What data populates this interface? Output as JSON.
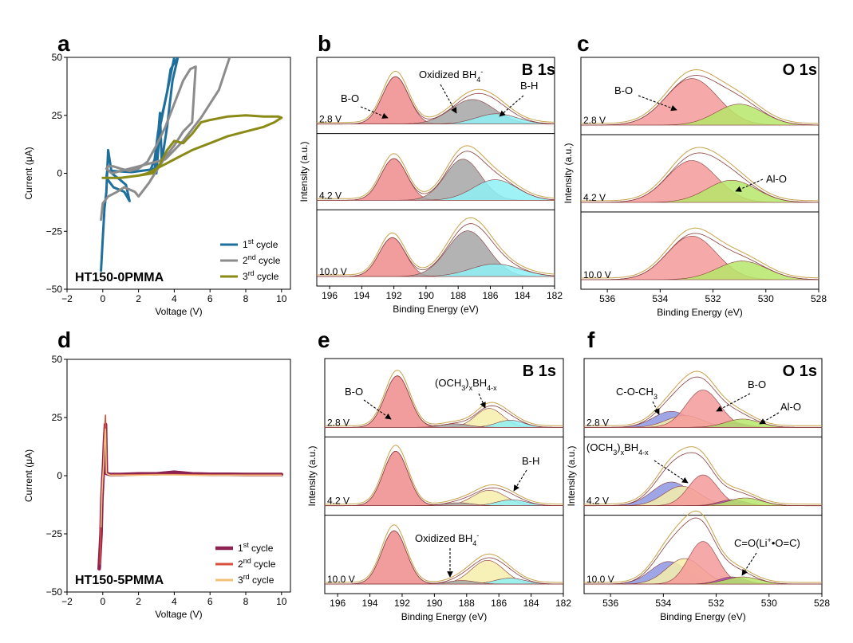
{
  "colors": {
    "c1": "#1f6f9c",
    "c2": "#8c8c8c",
    "c3": "#8a8a16",
    "d1": "#8b2252",
    "d2": "#d94f3a",
    "d3": "#f2c27a",
    "b_o": "#f08c8c",
    "b_h": "#8ef0f4",
    "oxidized": "#a6a6a6",
    "och3_boh": "#f6eeaa",
    "o_bo": "#f49a9a",
    "al_o": "#b6e66a",
    "c_o_ch3": "#8d96e2",
    "c_o_li": "#a64db8",
    "envelope": "#c8a24a",
    "data_line": "#8a3d3d"
  },
  "chart_data": [
    {
      "panel": "a",
      "type": "line",
      "title": "HT150-0PMMA",
      "xlabel": "Voltage (V)",
      "ylabel": "Current (μA)",
      "xlim": [
        -2,
        10.5
      ],
      "ylim": [
        -50,
        50
      ],
      "xticks": [
        "−2",
        "0",
        "2",
        "4",
        "6",
        "8",
        "10"
      ],
      "yticks": [
        "50",
        "25",
        "0",
        "−25",
        "−50"
      ],
      "legend_position": "bottom-right",
      "series": [
        {
          "name": "1st cycle",
          "label_base": "1",
          "label_sup": "st",
          "label_rest": " cycle",
          "color_key": "c1",
          "x": [
            -0.1,
            0.0,
            0.1,
            0.2,
            0.3,
            0.5,
            1.0,
            1.3,
            1.5,
            1.2,
            0.6,
            0.2,
            0.25,
            0.6,
            1.6,
            2.1,
            2.6,
            2.9,
            3.0,
            3.2,
            3.3,
            3.6,
            3.9,
            4.2,
            3.8,
            3.6,
            3.4,
            3.1,
            2.9,
            2.7,
            3.0,
            3.2,
            3.6,
            4.0
          ],
          "y": [
            -42,
            -28,
            -15,
            -8,
            10,
            0,
            -3,
            -5,
            -12,
            -8,
            -6,
            -2,
            1,
            1,
            0.5,
            1,
            1.5,
            2,
            8,
            26,
            5,
            20,
            40,
            50,
            45,
            35,
            28,
            18,
            6,
            2,
            0,
            20,
            35,
            50
          ]
        },
        {
          "name": "2nd cycle",
          "label_base": "2",
          "label_sup": "nd",
          "label_rest": " cycle",
          "color_key": "c2",
          "x": [
            -0.1,
            0.0,
            0.3,
            0.8,
            1.2,
            1.8,
            2.0,
            2.2,
            2.6,
            3.0,
            3.5,
            4.0,
            4.5,
            5.0,
            5.2,
            4.9,
            4.5,
            4.0,
            3.5,
            3.0,
            2.5,
            2.0,
            1.5,
            1.0,
            0.6,
            0.3,
            0.2,
            0.5,
            1.5,
            2.5,
            3.5,
            4.5,
            5.5,
            6.5,
            7.1
          ],
          "y": [
            -20,
            -13,
            -10,
            -8,
            -6,
            -8,
            -10,
            -8,
            -4,
            1,
            7,
            12,
            18,
            22,
            46,
            45,
            40,
            30,
            20,
            12,
            5,
            2,
            1,
            2,
            3,
            3,
            2,
            0,
            2,
            4,
            6,
            14,
            24,
            36,
            50
          ]
        },
        {
          "name": "3rd cycle",
          "label_base": "3",
          "label_sup": "rd",
          "label_rest": " cycle",
          "color_key": "c3",
          "x": [
            0.0,
            1.0,
            2.0,
            2.8,
            3.2,
            3.6,
            4.0,
            4.5,
            5.0,
            5.5,
            6.0,
            7.0,
            8.0,
            9.0,
            9.8,
            10.0,
            9.6,
            9.0,
            8.0,
            7.0,
            6.0,
            5.0,
            4.5,
            4.0,
            3.5,
            3.0,
            2.5,
            2.0,
            1.0,
            0.0
          ],
          "y": [
            -2,
            -2,
            -1,
            0,
            4,
            10,
            14,
            13,
            17,
            22,
            23,
            24.5,
            25,
            24.5,
            24.5,
            24,
            22,
            20,
            18,
            16,
            13,
            10,
            8,
            6,
            4,
            2,
            0,
            -1,
            -2,
            -2
          ]
        }
      ]
    },
    {
      "panel": "b",
      "type": "area",
      "title": "B 1s",
      "xlabel": "Binding Energy (eV)",
      "ylabel": "Intensity (a.u.)",
      "xlim": [
        196.8,
        182
      ],
      "xticks": [
        "196",
        "194",
        "192",
        "190",
        "188",
        "186",
        "184",
        "182"
      ],
      "stacks": [
        {
          "label": "2.8 V",
          "peaks": [
            {
              "component": "B-O",
              "color_key": "b_o",
              "center": 191.9,
              "fwhm": 1.9,
              "height": 0.83
            },
            {
              "component": "Oxidized BH4-",
              "color_key": "oxidized",
              "center": 187.1,
              "fwhm": 3.2,
              "height": 0.43
            },
            {
              "component": "B-H",
              "color_key": "b_h",
              "center": 185.6,
              "fwhm": 3.0,
              "height": 0.18
            }
          ]
        },
        {
          "label": "4.2 V",
          "peaks": [
            {
              "component": "B-O",
              "color_key": "b_o",
              "center": 192.0,
              "fwhm": 1.9,
              "height": 0.73
            },
            {
              "component": "Oxidized BH4-",
              "color_key": "oxidized",
              "center": 187.7,
              "fwhm": 2.6,
              "height": 0.72
            },
            {
              "component": "B-H",
              "color_key": "b_h",
              "center": 185.7,
              "fwhm": 3.2,
              "height": 0.36
            }
          ]
        },
        {
          "label": "10.0 V",
          "peaks": [
            {
              "component": "B-O",
              "color_key": "b_o",
              "center": 192.1,
              "fwhm": 1.9,
              "height": 0.68
            },
            {
              "component": "Oxidized BH4-",
              "color_key": "oxidized",
              "center": 187.4,
              "fwhm": 3.0,
              "height": 0.8
            },
            {
              "component": "B-H",
              "color_key": "b_h",
              "center": 185.7,
              "fwhm": 3.6,
              "height": 0.22
            }
          ]
        }
      ],
      "annotations": {
        "b_o": "B-O",
        "oxidized_base": "Oxidized BH",
        "oxidized_sub": "4",
        "oxidized_sup": "-",
        "b_h": "B-H"
      }
    },
    {
      "panel": "c",
      "type": "area",
      "title": "O 1s",
      "xlabel": "Binding Energy (eV)",
      "ylabel": "Intensity (a.u.)",
      "xlim": [
        537,
        528
      ],
      "xticks": [
        "536",
        "534",
        "532",
        "530",
        "528"
      ],
      "stacks": [
        {
          "label": "2.8 V",
          "peaks": [
            {
              "component": "B-O",
              "color_key": "o_bo",
              "center": 532.8,
              "fwhm": 2.3,
              "height": 0.8
            },
            {
              "component": "Al-O",
              "color_key": "al_o",
              "center": 531.0,
              "fwhm": 2.1,
              "height": 0.36
            }
          ]
        },
        {
          "label": "4.2 V",
          "peaks": [
            {
              "component": "B-O",
              "color_key": "o_bo",
              "center": 532.8,
              "fwhm": 2.2,
              "height": 0.72
            },
            {
              "component": "Al-O",
              "color_key": "al_o",
              "center": 531.3,
              "fwhm": 2.2,
              "height": 0.38
            }
          ]
        },
        {
          "label": "10.0 V",
          "peaks": [
            {
              "component": "B-O",
              "color_key": "o_bo",
              "center": 532.8,
              "fwhm": 2.2,
              "height": 0.75
            },
            {
              "component": "Al-O",
              "color_key": "al_o",
              "center": 530.9,
              "fwhm": 2.2,
              "height": 0.32
            }
          ]
        }
      ],
      "annotations": {
        "b_o": "B-O",
        "al_o": "Al-O"
      }
    },
    {
      "panel": "d",
      "type": "line",
      "title": "HT150-5PMMA",
      "xlabel": "Voltage (V)",
      "ylabel": "Current (μA)",
      "xlim": [
        -2,
        10.5
      ],
      "ylim": [
        -50,
        50
      ],
      "xticks": [
        "−2",
        "0",
        "2",
        "4",
        "6",
        "8",
        "10"
      ],
      "yticks": [
        "50",
        "25",
        "0",
        "−25",
        "−50"
      ],
      "legend_position": "bottom-right",
      "series": [
        {
          "name": "1st cycle",
          "label_base": "1",
          "label_sup": "st",
          "label_rest": " cycle",
          "color_key": "d1",
          "width": 4.5,
          "x": [
            -0.2,
            -0.1,
            -0.05,
            0.0,
            0.05,
            0.1,
            0.15,
            0.2,
            0.4,
            1.0,
            2.0,
            3.0,
            4.0,
            5.0,
            6.0,
            7.0,
            8.0,
            9.0,
            10.0
          ],
          "y": [
            -40,
            -25,
            -10,
            -2,
            5,
            15,
            22,
            1,
            0.5,
            0.5,
            0.8,
            0.8,
            1.5,
            0.8,
            0.6,
            0.6,
            0.5,
            0.5,
            0.5
          ]
        },
        {
          "name": "2nd cycle",
          "label_base": "2",
          "label_sup": "nd",
          "label_rest": " cycle",
          "color_key": "d2",
          "width": 1.6,
          "x": [
            -0.15,
            -0.1,
            -0.05,
            0.0,
            0.05,
            0.1,
            0.15,
            0.2,
            0.4,
            1.0,
            2.0,
            3.0,
            4.0,
            5.0,
            6.0,
            7.0,
            8.0,
            9.0,
            10.0
          ],
          "y": [
            -38,
            -20,
            -8,
            -1,
            6,
            18,
            26,
            1,
            0.3,
            0.3,
            0.4,
            0.5,
            0.5,
            0.4,
            0.3,
            0.3,
            0.3,
            0.3,
            0.3
          ]
        },
        {
          "name": "3rd cycle",
          "label_base": "3",
          "label_sup": "rd",
          "label_rest": " cycle",
          "color_key": "d3",
          "width": 1.6,
          "x": [
            -0.1,
            -0.05,
            0.0,
            0.05,
            0.1,
            0.15,
            0.2,
            0.4,
            1.0,
            2.0,
            3.0,
            4.0,
            5.0,
            6.0,
            7.0,
            8.0,
            9.0,
            10.0
          ],
          "y": [
            -22,
            -8,
            -1,
            5,
            14,
            20,
            1,
            0.2,
            0.2,
            0.2,
            0.3,
            0.3,
            0.2,
            0.2,
            0.2,
            0.2,
            0.2,
            0.2
          ]
        }
      ]
    },
    {
      "panel": "e",
      "type": "area",
      "title": "B 1s",
      "xlabel": "Binding Energy (eV)",
      "ylabel": "Intensity (a.u.)",
      "xlim": [
        196.8,
        182
      ],
      "xticks": [
        "196",
        "194",
        "192",
        "190",
        "188",
        "186",
        "184",
        "182"
      ],
      "stacks": [
        {
          "label": "2.8 V",
          "peaks": [
            {
              "component": "B-O",
              "color_key": "b_o",
              "center": 192.3,
              "fwhm": 1.8,
              "height": 0.87
            },
            {
              "component": "(OCH3)xBH4-x",
              "color_key": "och3_boh",
              "center": 186.6,
              "fwhm": 2.0,
              "height": 0.32
            },
            {
              "component": "B-H",
              "color_key": "b_h",
              "center": 185.3,
              "fwhm": 2.0,
              "height": 0.12
            },
            {
              "component": "Oxidized BH4-",
              "color_key": "oxidized",
              "center": 188.7,
              "fwhm": 2.0,
              "height": 0.06
            }
          ]
        },
        {
          "label": "4.2 V",
          "peaks": [
            {
              "component": "B-O",
              "color_key": "b_o",
              "center": 192.4,
              "fwhm": 1.8,
              "height": 0.92
            },
            {
              "component": "(OCH3)xBH4-x",
              "color_key": "och3_boh",
              "center": 186.6,
              "fwhm": 2.4,
              "height": 0.26
            },
            {
              "component": "B-H",
              "color_key": "b_h",
              "center": 185.2,
              "fwhm": 2.2,
              "height": 0.1
            },
            {
              "component": "Oxidized BH4-",
              "color_key": "oxidized",
              "center": 188.5,
              "fwhm": 2.0,
              "height": 0.05
            }
          ]
        },
        {
          "label": "10.0 V",
          "peaks": [
            {
              "component": "B-O",
              "color_key": "b_o",
              "center": 192.5,
              "fwhm": 1.8,
              "height": 0.9
            },
            {
              "component": "(OCH3)xBH4-x",
              "color_key": "och3_boh",
              "center": 186.7,
              "fwhm": 2.4,
              "height": 0.4
            },
            {
              "component": "B-H",
              "color_key": "b_h",
              "center": 185.3,
              "fwhm": 2.2,
              "height": 0.1
            },
            {
              "component": "Oxidized BH4-",
              "color_key": "oxidized",
              "center": 188.3,
              "fwhm": 2.0,
              "height": 0.06
            }
          ]
        }
      ],
      "annotations": {
        "b_o": "B-O",
        "och_base": "(OCH",
        "och_sub1": "3",
        "och_mid": ")",
        "och_sub2": "x",
        "och_bh": "BH",
        "och_sub3": "4-x",
        "b_h": "B-H",
        "oxidized_base": "Oxidized BH",
        "oxidized_sub": "4",
        "oxidized_sup": "-"
      }
    },
    {
      "panel": "f",
      "type": "area",
      "title": "O 1s",
      "xlabel": "Binding Energy (eV)",
      "ylabel": "Intensity (a.u.)",
      "xlim": [
        537,
        528
      ],
      "xticks": [
        "536",
        "534",
        "532",
        "530",
        "528"
      ],
      "stacks": [
        {
          "label": "2.8 V",
          "peaks": [
            {
              "component": "C-O-CH3",
              "color_key": "c_o_ch3",
              "center": 533.7,
              "fwhm": 1.6,
              "height": 0.27
            },
            {
              "component": "(OCH3)xBH4-x",
              "color_key": "och3_boh",
              "center": 533.2,
              "fwhm": 1.6,
              "height": 0.2
            },
            {
              "component": "B-O",
              "color_key": "o_bo",
              "center": 532.5,
              "fwhm": 1.5,
              "height": 0.63
            },
            {
              "component": "C=O(Li+•O=C)",
              "color_key": "c_o_li",
              "center": 531.4,
              "fwhm": 1.2,
              "height": 0.08
            },
            {
              "component": "Al-O",
              "color_key": "al_o",
              "center": 531.0,
              "fwhm": 1.5,
              "height": 0.14
            }
          ]
        },
        {
          "label": "4.2 V",
          "peaks": [
            {
              "component": "C-O-CH3",
              "color_key": "c_o_ch3",
              "center": 533.7,
              "fwhm": 1.7,
              "height": 0.4
            },
            {
              "component": "(OCH3)xBH4-x",
              "color_key": "och3_boh",
              "center": 533.3,
              "fwhm": 1.6,
              "height": 0.33
            },
            {
              "component": "B-O",
              "color_key": "o_bo",
              "center": 532.5,
              "fwhm": 1.3,
              "height": 0.52
            },
            {
              "component": "C=O(Li+•O=C)",
              "color_key": "c_o_li",
              "center": 531.4,
              "fwhm": 1.2,
              "height": 0.1
            },
            {
              "component": "Al-O",
              "color_key": "al_o",
              "center": 530.9,
              "fwhm": 1.5,
              "height": 0.13
            }
          ]
        },
        {
          "label": "10.0 V",
          "peaks": [
            {
              "component": "C-O-CH3",
              "color_key": "c_o_ch3",
              "center": 533.8,
              "fwhm": 1.6,
              "height": 0.38
            },
            {
              "component": "(OCH3)xBH4-x",
              "color_key": "och3_boh",
              "center": 533.2,
              "fwhm": 1.6,
              "height": 0.43
            },
            {
              "component": "B-O",
              "color_key": "o_bo",
              "center": 532.5,
              "fwhm": 1.3,
              "height": 0.72
            },
            {
              "component": "C=O(Li+•O=C)",
              "color_key": "c_o_li",
              "center": 531.4,
              "fwhm": 1.2,
              "height": 0.12
            },
            {
              "component": "Al-O",
              "color_key": "al_o",
              "center": 531.0,
              "fwhm": 1.5,
              "height": 0.12
            }
          ]
        }
      ],
      "annotations": {
        "c_o_ch3_base": "C-O-CH",
        "c_o_ch3_sub": "3",
        "b_o": "B-O",
        "al_o": "Al-O",
        "och_base": "(OCH",
        "och_sub1": "3",
        "och_mid": ")",
        "och_sub2": "x",
        "och_bh": "BH",
        "och_sub3": "4-x",
        "c_o_li_a": "C=O(Li",
        "c_o_li_sup": "+",
        "c_o_li_b": "•O=C)"
      }
    }
  ]
}
